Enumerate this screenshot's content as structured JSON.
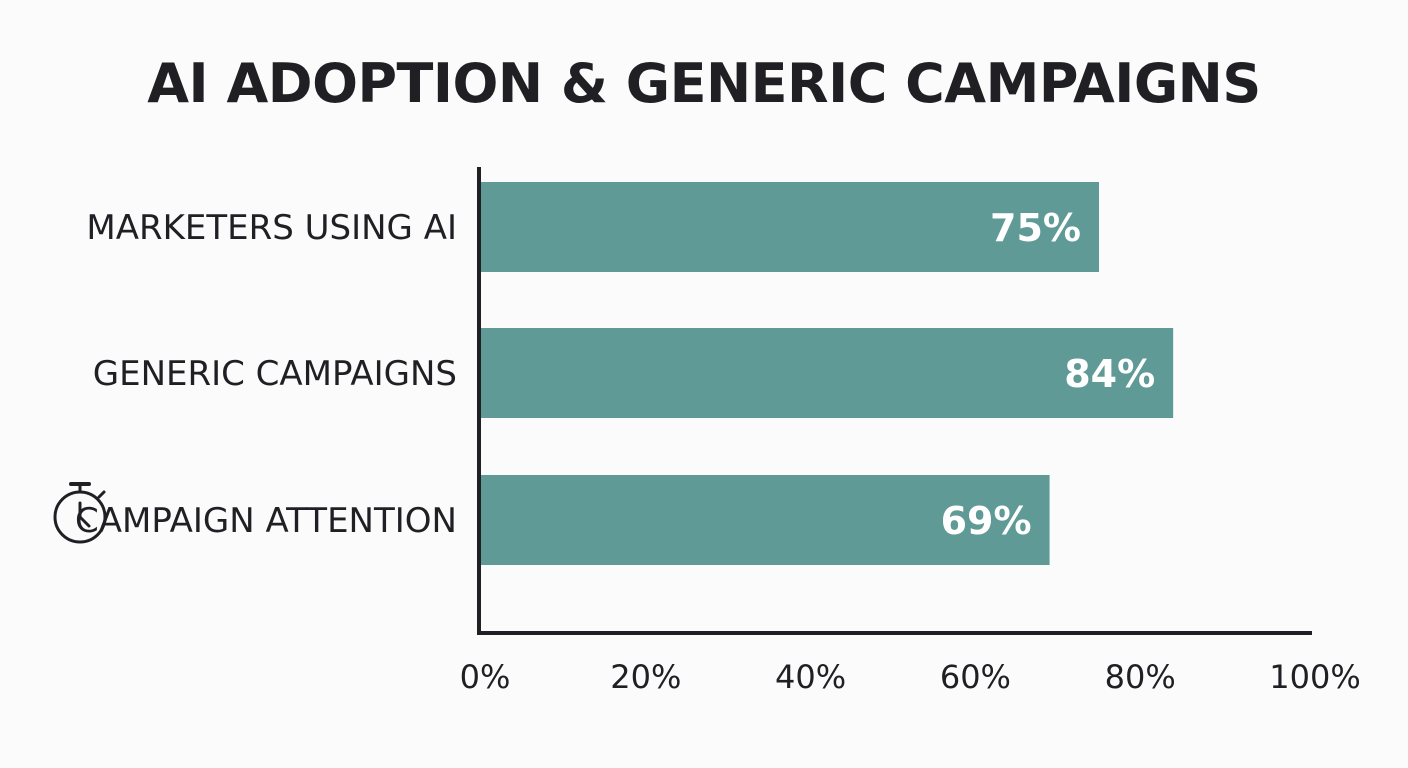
{
  "colors": {
    "bar": "#5f9a96",
    "axis": "#1f1f24",
    "text": "#1f1f24",
    "bar_label": "#ffffff",
    "background": "#fbfbfb"
  },
  "chart_data": {
    "type": "bar",
    "orientation": "horizontal",
    "title": "AI ADOPTION & GENERIC CAMPAIGNS",
    "categories": [
      "MARKETERS USING AI",
      "GENERIC CAMPAIGNS",
      "CAMPAIGN ATTENTION"
    ],
    "category_icons": [
      null,
      null,
      "stopwatch-icon"
    ],
    "values": [
      75,
      84,
      69
    ],
    "value_labels": [
      "75%",
      "84%",
      "69%"
    ],
    "xlim": [
      0,
      100
    ],
    "x_ticks": [
      0,
      20,
      40,
      60,
      80,
      100
    ],
    "x_tick_labels": [
      "0%",
      "20%",
      "40%",
      "60%",
      "80%",
      "100%"
    ],
    "xlabel": "",
    "ylabel": "",
    "grid": false,
    "legend": "none"
  }
}
